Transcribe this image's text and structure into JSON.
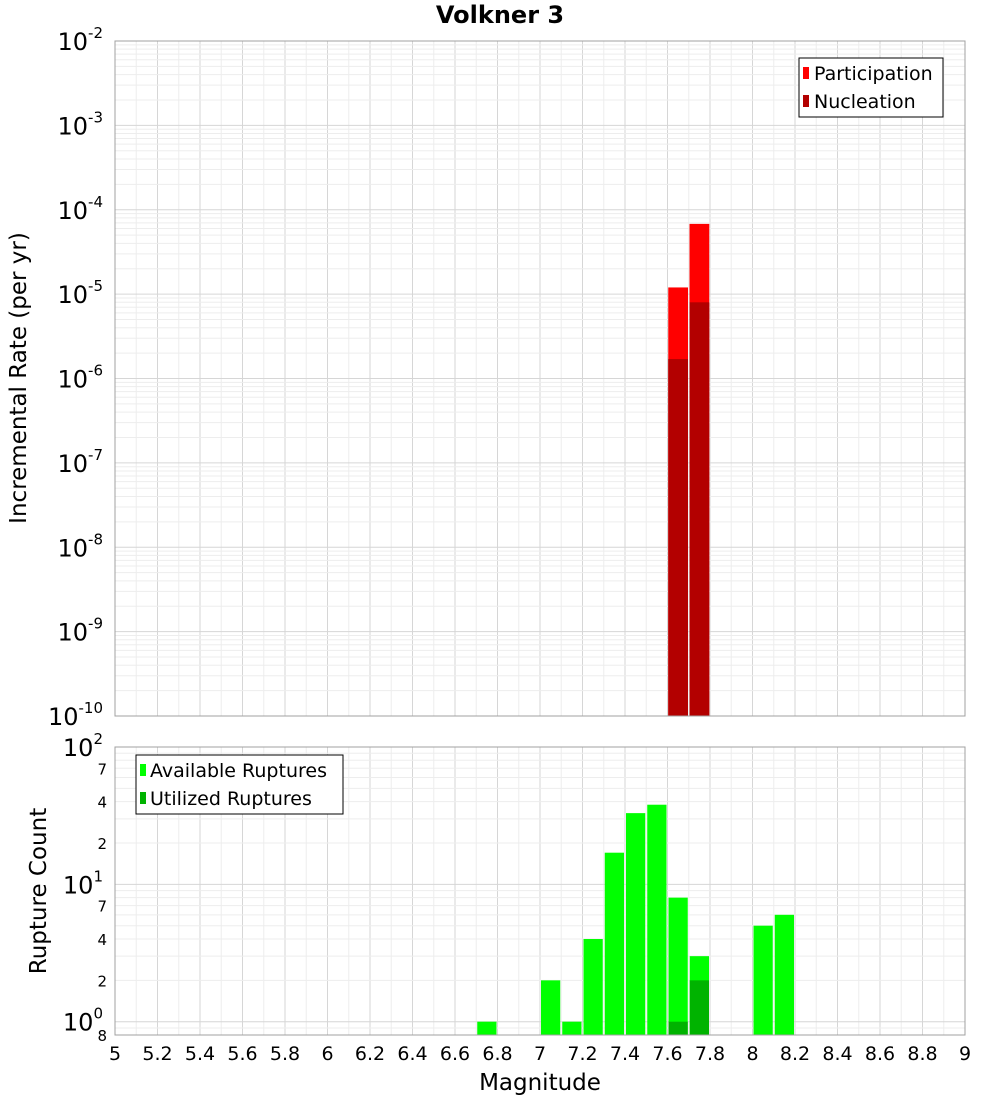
{
  "chart_data": [
    {
      "type": "bar",
      "title": "Volkner 3",
      "xlabel": "",
      "ylabel": "Incremental Rate (per yr)",
      "y_scale": "log",
      "ylim": [
        1e-10,
        0.01
      ],
      "y_ticks": [
        {
          "base": "10",
          "exp": "-2"
        },
        {
          "base": "10",
          "exp": "-3"
        },
        {
          "base": "10",
          "exp": "-4"
        },
        {
          "base": "10",
          "exp": "-5"
        },
        {
          "base": "10",
          "exp": "-6"
        },
        {
          "base": "10",
          "exp": "-7"
        },
        {
          "base": "10",
          "exp": "-8"
        },
        {
          "base": "10",
          "exp": "-9"
        },
        {
          "base": "10",
          "exp": "-10"
        }
      ],
      "bin_width": 0.1,
      "legend_position": "top-right",
      "grid": true,
      "series": [
        {
          "name": "Participation",
          "color": "#ff0000",
          "x": [
            7.65,
            7.75
          ],
          "values": [
            1.2e-05,
            6.8e-05
          ]
        },
        {
          "name": "Nucleation",
          "color": "#b30000",
          "x": [
            7.65,
            7.75
          ],
          "values": [
            1.7e-06,
            8e-06
          ]
        }
      ]
    },
    {
      "type": "bar",
      "title": "",
      "xlabel": "Magnitude",
      "ylabel": "Rupture Count",
      "y_scale": "log",
      "ylim": [
        0.8,
        100
      ],
      "xlim": [
        5,
        9
      ],
      "x_ticks": [
        "5",
        "5.2",
        "5.4",
        "5.6",
        "5.8",
        "6",
        "6.2",
        "6.4",
        "6.6",
        "6.8",
        "7",
        "7.2",
        "7.4",
        "7.6",
        "7.8",
        "8",
        "8.2",
        "8.4",
        "8.6",
        "8.8",
        "9"
      ],
      "y_major_ticks": [
        {
          "base": "10",
          "exp": "2"
        },
        {
          "base": "10",
          "exp": "1"
        },
        {
          "base": "10",
          "exp": "0"
        }
      ],
      "y_minor_ticks": [
        "7",
        "4",
        "2",
        "7",
        "4",
        "2",
        "8"
      ],
      "bin_width": 0.1,
      "legend_position": "top-left",
      "grid": true,
      "series": [
        {
          "name": "Available Ruptures",
          "color": "#00ff00",
          "x": [
            6.75,
            7.05,
            7.15,
            7.25,
            7.35,
            7.45,
            7.55,
            7.65,
            7.75,
            8.05,
            8.15
          ],
          "values": [
            1,
            2,
            1,
            4,
            17,
            33,
            38,
            8,
            3,
            5,
            6
          ]
        },
        {
          "name": "Utilized Ruptures",
          "color": "#00b300",
          "x": [
            7.65,
            7.75
          ],
          "values": [
            1,
            2
          ]
        }
      ]
    }
  ]
}
